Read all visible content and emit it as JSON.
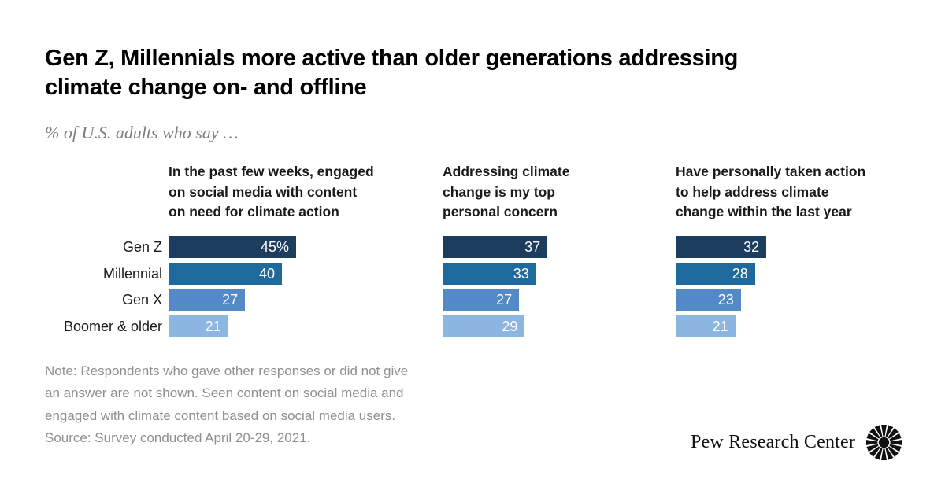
{
  "title": "Gen Z, Millennials more active than older generations addressing\nclimate change on- and offline",
  "subtitle": "% of U.S. adults who say …",
  "colors": {
    "bars": [
      "#1c3d5e",
      "#1e6a9c",
      "#5389c6",
      "#8cb5e2"
    ],
    "value_text": "#ffffff",
    "note_text": "#8f8f8f",
    "title_text": "#000000"
  },
  "chart_data": {
    "type": "bar",
    "orientation": "horizontal",
    "xlim": [
      0,
      50
    ],
    "grid": false,
    "legend": "none",
    "value_labels_position": "inside-end",
    "categories": [
      "Gen Z",
      "Millennial",
      "Gen X",
      "Boomer & older"
    ],
    "series": [
      {
        "name": "In the past few weeks, engaged\non social media with content\non need for climate action",
        "values": [
          45,
          40,
          27,
          21
        ],
        "labels": [
          "45%",
          "40",
          "27",
          "21"
        ]
      },
      {
        "name": "Addressing climate\nchange is my top\npersonal concern",
        "values": [
          37,
          33,
          27,
          29
        ],
        "labels": [
          "37",
          "33",
          "27",
          "29"
        ]
      },
      {
        "name": "Have personally taken action\nto help address climate\nchange within the last year",
        "values": [
          32,
          28,
          23,
          21
        ],
        "labels": [
          "32",
          "28",
          "23",
          "21"
        ]
      }
    ]
  },
  "note_lines": [
    "Note: Respondents who gave other responses or did not give",
    "an answer are not shown. Seen content on social media and",
    "engaged with climate content based on social media users.",
    "Source: Survey conducted April 20-29, 2021."
  ],
  "footer": {
    "brand": "Pew Research Center"
  }
}
